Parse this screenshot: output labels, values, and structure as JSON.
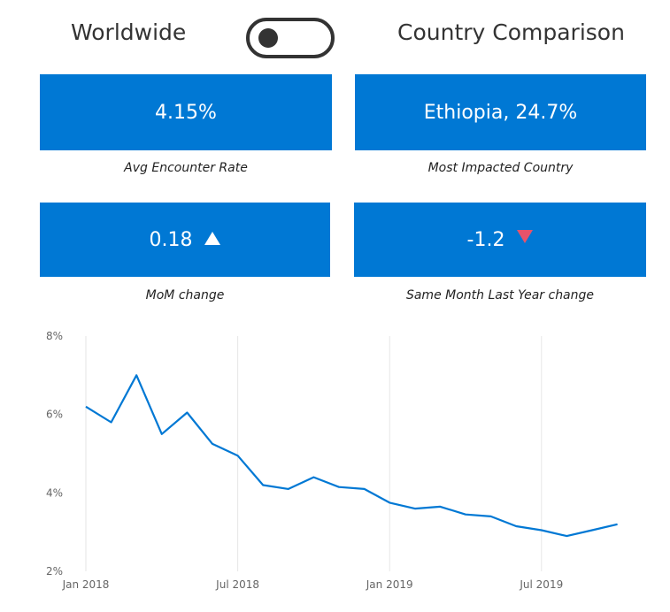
{
  "header": {
    "left_title": "Worldwide",
    "right_title": "Country Comparison",
    "toggle_state": "off"
  },
  "cards": {
    "avg_rate": {
      "value": "4.15%",
      "caption": "Avg Encounter Rate"
    },
    "most_impacted": {
      "value": "Ethiopia, 24.7%",
      "caption": "Most Impacted Country"
    },
    "mom_change": {
      "value": "0.18",
      "caption": "MoM change",
      "direction": "up",
      "indicator_color": "#ffffff"
    },
    "last_year_change": {
      "value": "-1.2",
      "caption": "Same Month Last Year change",
      "direction": "down",
      "indicator_color": "#e8536a"
    }
  },
  "colors": {
    "card_bg": "#0078d4",
    "line": "#0078d4"
  },
  "chart_data": {
    "type": "line",
    "x": [
      "2018-01",
      "2018-02",
      "2018-03",
      "2018-04",
      "2018-05",
      "2018-06",
      "2018-07",
      "2018-08",
      "2018-09",
      "2018-10",
      "2018-11",
      "2018-12",
      "2019-01",
      "2019-02",
      "2019-03",
      "2019-04",
      "2019-05",
      "2019-06",
      "2019-07",
      "2019-08",
      "2019-09",
      "2019-10"
    ],
    "series": [
      {
        "values": [
          6.2,
          5.8,
          7.0,
          5.5,
          6.05,
          5.25,
          4.95,
          4.2,
          4.1,
          4.4,
          4.15,
          4.1,
          3.75,
          3.6,
          3.65,
          3.45,
          3.4,
          3.15,
          3.05,
          2.9,
          3.05,
          3.2
        ]
      }
    ],
    "x_ticks": [
      "Jan 2018",
      "Jul 2018",
      "Jan 2019",
      "Jul 2019"
    ],
    "y_ticks": [
      "8%",
      "6%",
      "4%",
      "2%"
    ],
    "ylim": [
      2,
      8
    ],
    "grid": "vertical",
    "legend": "none"
  }
}
